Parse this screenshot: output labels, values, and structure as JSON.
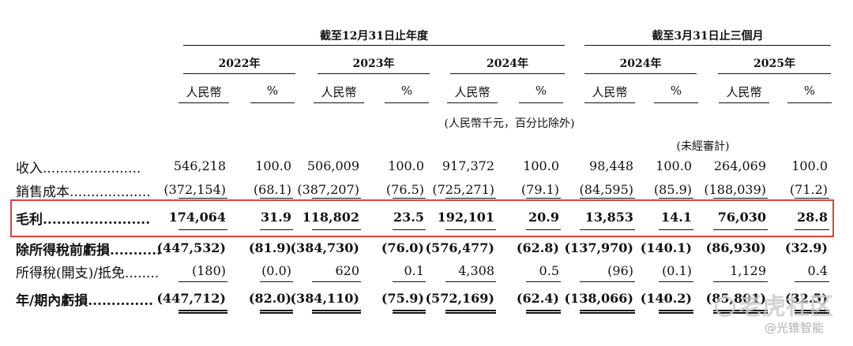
{
  "header": {
    "group1": "截至12月31日止年度",
    "group2": "截至3月31日止三個月",
    "years": [
      "2022年",
      "2023年",
      "2024年",
      "2024年",
      "2025年"
    ],
    "col_rmb": "人民幣",
    "col_pct": "%",
    "unit_note": "(人民幣千元，百分比除外)",
    "unaudited": "(未經審計)"
  },
  "rows": [
    {
      "label": "收入.......................",
      "bold": false,
      "values": [
        "546,218",
        "100.0",
        "506,009",
        "100.0",
        "917,372",
        "100.0",
        "98,448",
        "100.0",
        "264,069",
        "100.0"
      ]
    },
    {
      "label": "銷售成本...................",
      "bold": false,
      "values": [
        "(372,154)",
        "(68.1)",
        "(387,207)",
        "(76.5)",
        "(725,271)",
        "(79.1)",
        "(84,595)",
        "(85.9)",
        "(188,039)",
        "(71.2)"
      ]
    },
    {
      "label": "毛利.......................",
      "bold": true,
      "values": [
        "174,064",
        "31.9",
        "118,802",
        "23.5",
        "192,101",
        "20.9",
        "13,853",
        "14.1",
        "76,030",
        "28.8"
      ]
    },
    {
      "label": "除所得稅前虧損...........",
      "bold": true,
      "values": [
        "(447,532)",
        "(81.9)",
        "(384,730)",
        "(76.0)",
        "(576,477)",
        "(62.8)",
        "(137,970)",
        "(140.1)",
        "(86,930)",
        "(32.9)"
      ]
    },
    {
      "label": "所得稅(開支)/抵免........",
      "bold": false,
      "values": [
        "(180)",
        "(0.0)",
        "620",
        "0.1",
        "4,308",
        "0.5",
        "(96)",
        "(0.1)",
        "1,129",
        "0.4"
      ]
    },
    {
      "label": "年/期內虧損..............",
      "bold": true,
      "values": [
        "(447,712)",
        "(82.0)",
        "(384,110)",
        "(75.9)",
        "(572,169)",
        "(62.4)",
        "(138,066)",
        "(140.2)",
        "(85,801)",
        "(32.5)"
      ]
    }
  ],
  "watermark": {
    "main": "老虎社区",
    "sub": "@光锥智能"
  }
}
